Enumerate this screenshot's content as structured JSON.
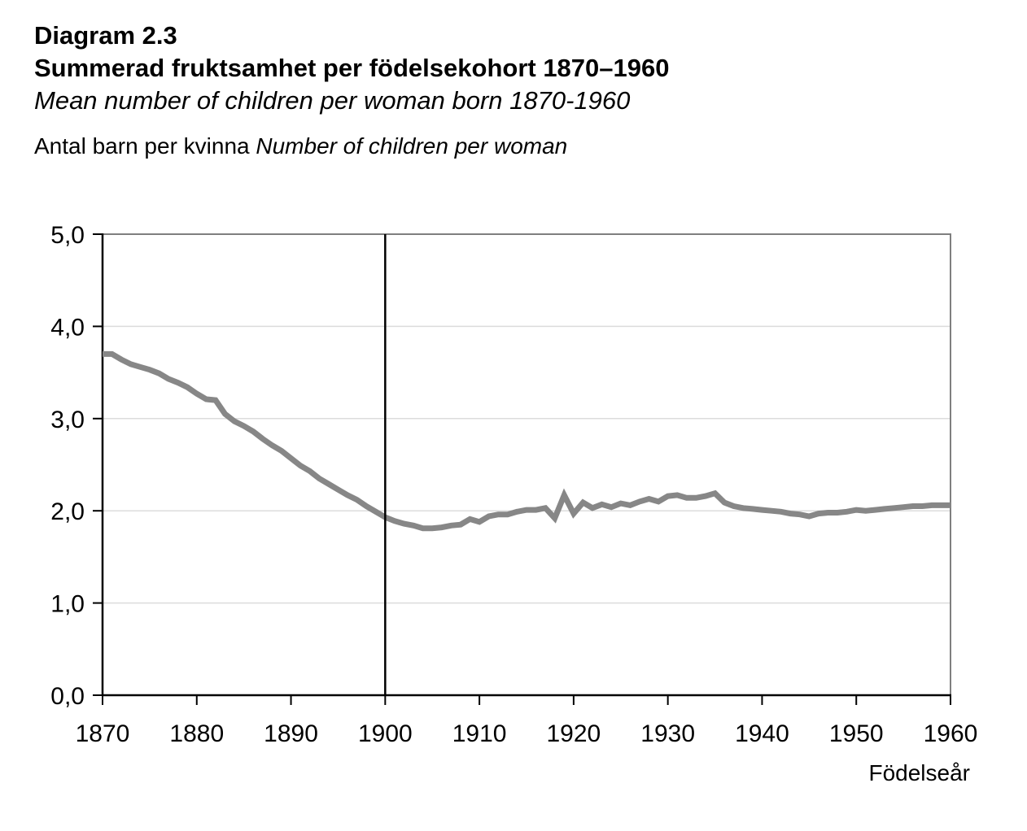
{
  "header": {
    "diagram_label": "Diagram 2.3",
    "title_sv": "Summerad fruktsamhet per födelsekohort 1870–1960",
    "title_en": "Mean number of children per woman born 1870-1960",
    "caption_sv": "Antal barn per kvinna",
    "caption_en": "Number of children per woman"
  },
  "colors": {
    "background": "#ffffff",
    "text": "#000000",
    "series_line": "#878787",
    "axis": "#000000",
    "frame": "#7f7f7f",
    "grid": "#dcdcdc",
    "reference_line": "#000000"
  },
  "chart_data": {
    "type": "line",
    "title": "Summerad fruktsamhet per födelsekohort 1870–1960",
    "subtitle": "Mean number of children per woman born 1870-1960",
    "xlabel": "Födelseår",
    "ylabel": "Antal barn per kvinna Number of children per woman",
    "xlim": [
      1870,
      1960
    ],
    "ylim": [
      0.0,
      5.0
    ],
    "x_ticks": [
      1870,
      1880,
      1890,
      1900,
      1910,
      1920,
      1930,
      1940,
      1950,
      1960
    ],
    "x_tick_labels": [
      "1870",
      "1880",
      "1890",
      "1900",
      "1910",
      "1920",
      "1930",
      "1940",
      "1950",
      "1960"
    ],
    "y_ticks": [
      0,
      1,
      2,
      3,
      4,
      5
    ],
    "y_tick_labels": [
      "0,0",
      "1,0",
      "2,0",
      "3,0",
      "4,0",
      "5,0"
    ],
    "grid": "horizontal light gray lines at integer values, no vertical grid",
    "legend_position": "none",
    "reference_line": {
      "x": 1900,
      "orientation": "vertical",
      "color": "#000000"
    },
    "series": [
      {
        "name": "Summerad fruktsamhet per födelsekohort / Mean number of children per woman by birth cohort",
        "color": "#878787",
        "x": [
          1870,
          1871,
          1872,
          1873,
          1874,
          1875,
          1876,
          1877,
          1878,
          1879,
          1880,
          1881,
          1882,
          1883,
          1884,
          1885,
          1886,
          1887,
          1888,
          1889,
          1890,
          1891,
          1892,
          1893,
          1894,
          1895,
          1896,
          1897,
          1898,
          1899,
          1900,
          1901,
          1902,
          1903,
          1904,
          1905,
          1906,
          1907,
          1908,
          1909,
          1910,
          1911,
          1912,
          1913,
          1914,
          1915,
          1916,
          1917,
          1918,
          1919,
          1920,
          1921,
          1922,
          1923,
          1924,
          1925,
          1926,
          1927,
          1928,
          1929,
          1930,
          1931,
          1932,
          1933,
          1934,
          1935,
          1936,
          1937,
          1938,
          1939,
          1940,
          1941,
          1942,
          1943,
          1944,
          1945,
          1946,
          1947,
          1948,
          1949,
          1950,
          1951,
          1952,
          1953,
          1954,
          1955,
          1956,
          1957,
          1958,
          1959,
          1960
        ],
        "values": [
          3.7,
          3.7,
          3.64,
          3.59,
          3.56,
          3.53,
          3.49,
          3.43,
          3.39,
          3.34,
          3.27,
          3.21,
          3.2,
          3.05,
          2.97,
          2.92,
          2.86,
          2.78,
          2.71,
          2.65,
          2.57,
          2.49,
          2.43,
          2.35,
          2.29,
          2.23,
          2.17,
          2.12,
          2.05,
          1.99,
          1.93,
          1.89,
          1.86,
          1.84,
          1.81,
          1.81,
          1.82,
          1.84,
          1.85,
          1.91,
          1.88,
          1.94,
          1.96,
          1.96,
          1.99,
          2.01,
          2.01,
          2.03,
          1.92,
          2.17,
          1.97,
          2.09,
          2.03,
          2.07,
          2.04,
          2.08,
          2.06,
          2.1,
          2.13,
          2.1,
          2.16,
          2.17,
          2.14,
          2.14,
          2.16,
          2.19,
          2.09,
          2.05,
          2.03,
          2.02,
          2.01,
          2.0,
          1.99,
          1.97,
          1.96,
          1.94,
          1.97,
          1.98,
          1.98,
          1.99,
          2.01,
          2.0,
          2.01,
          2.02,
          2.03,
          2.04,
          2.05,
          2.05,
          2.06,
          2.06,
          2.06
        ]
      }
    ]
  }
}
